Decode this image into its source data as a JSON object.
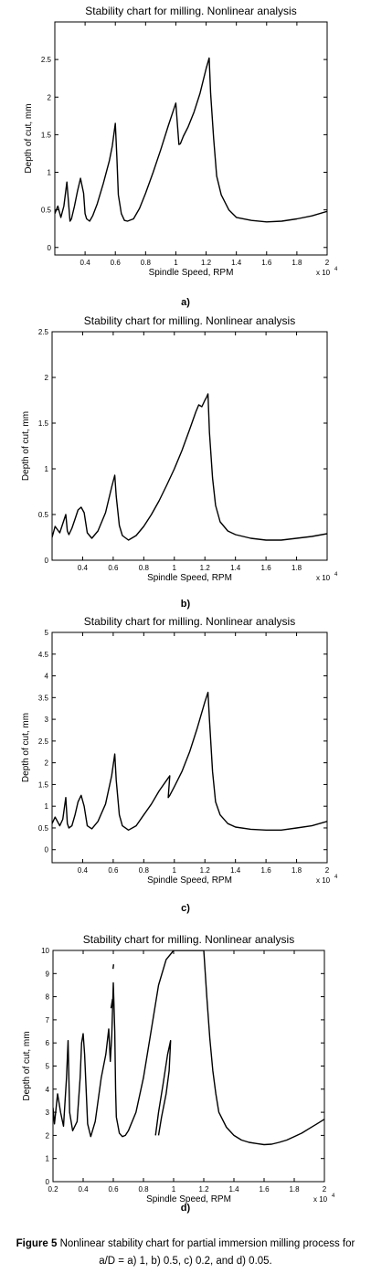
{
  "figure": {
    "caption_label": "Figure 5",
    "caption_text": "Nonlinear stability chart for partial immersion milling process for a/D = a) 1, b) 0.5, c) 0.2, and d) 0.05."
  },
  "chart_data": [
    {
      "type": "line",
      "panel_label": "a)",
      "title": "Stability chart for milling. Nonlinear analysis",
      "xlabel": "Spindle Speed, RPM",
      "ylabel": "Depth of cut, mm",
      "x_multiplier": "x 10",
      "x_multiplier_exp": "4",
      "xlim": [
        0.2,
        2.0
      ],
      "ylim": [
        -0.1,
        3.0
      ],
      "xticks": [
        "0.4",
        "0.6",
        "0.8",
        "1",
        "1.2",
        "1.4",
        "1.6",
        "1.8",
        "2"
      ],
      "yticks": [
        "0",
        "0.5",
        "1",
        "1.5",
        "2",
        "2.5"
      ],
      "ytick_values": [
        0,
        0.5,
        1,
        1.5,
        2,
        2.5
      ],
      "series": [
        {
          "x": [
            0.2,
            0.22,
            0.24,
            0.26,
            0.28,
            0.3,
            0.31,
            0.33,
            0.35,
            0.37,
            0.39,
            0.4,
            0.41,
            0.43,
            0.45,
            0.48,
            0.52,
            0.56,
            0.58,
            0.6,
            0.61,
            0.62,
            0.64,
            0.66,
            0.68,
            0.72,
            0.76,
            0.8,
            0.85,
            0.9,
            0.95,
            1.0,
            1.02,
            1.03,
            1.05,
            1.08,
            1.12,
            1.16,
            1.2,
            1.22,
            1.23,
            1.25,
            1.27,
            1.3,
            1.35,
            1.4,
            1.5,
            1.6,
            1.7,
            1.8,
            1.9,
            2.0
          ],
          "y": [
            0.45,
            0.55,
            0.4,
            0.55,
            0.87,
            0.35,
            0.38,
            0.55,
            0.75,
            0.92,
            0.72,
            0.45,
            0.38,
            0.35,
            0.42,
            0.58,
            0.85,
            1.15,
            1.35,
            1.65,
            1.2,
            0.7,
            0.45,
            0.36,
            0.35,
            0.38,
            0.52,
            0.72,
            1.0,
            1.3,
            1.62,
            1.92,
            1.37,
            1.38,
            1.48,
            1.6,
            1.8,
            2.05,
            2.38,
            2.52,
            2.05,
            1.45,
            0.95,
            0.7,
            0.5,
            0.4,
            0.36,
            0.34,
            0.35,
            0.38,
            0.42,
            0.48
          ]
        }
      ]
    },
    {
      "type": "line",
      "panel_label": "b)",
      "title": "Stability chart for milling. Nonlinear analysis",
      "xlabel": "Spindle Speed, RPM",
      "ylabel": "Depth of cut, mm",
      "x_multiplier": "x 10",
      "x_multiplier_exp": "4",
      "xlim": [
        0.2,
        2.0
      ],
      "ylim": [
        0,
        2.5
      ],
      "xticks": [
        "0.4",
        "0.6",
        "0.8",
        "1",
        "1.2",
        "1.4",
        "1.6",
        "1.8"
      ],
      "yticks": [
        "0",
        "0.5",
        "1",
        "1.5",
        "2",
        "2.5"
      ],
      "ytick_values": [
        0,
        0.5,
        1,
        1.5,
        2,
        2.5
      ],
      "series": [
        {
          "x": [
            0.2,
            0.22,
            0.25,
            0.27,
            0.29,
            0.3,
            0.31,
            0.33,
            0.35,
            0.37,
            0.39,
            0.41,
            0.43,
            0.46,
            0.5,
            0.55,
            0.59,
            0.61,
            0.62,
            0.64,
            0.66,
            0.7,
            0.75,
            0.8,
            0.85,
            0.9,
            0.95,
            1.0,
            1.05,
            1.1,
            1.14,
            1.16,
            1.18,
            1.2,
            1.21,
            1.22,
            1.23,
            1.25,
            1.27,
            1.3,
            1.35,
            1.4,
            1.5,
            1.6,
            1.7,
            1.8,
            1.9,
            2.0
          ],
          "y": [
            0.25,
            0.37,
            0.3,
            0.4,
            0.5,
            0.32,
            0.28,
            0.35,
            0.45,
            0.55,
            0.58,
            0.52,
            0.3,
            0.24,
            0.32,
            0.52,
            0.8,
            0.93,
            0.7,
            0.38,
            0.27,
            0.22,
            0.27,
            0.37,
            0.5,
            0.65,
            0.82,
            1.0,
            1.2,
            1.43,
            1.62,
            1.7,
            1.68,
            1.75,
            1.78,
            1.82,
            1.4,
            0.9,
            0.6,
            0.42,
            0.32,
            0.28,
            0.24,
            0.22,
            0.22,
            0.24,
            0.26,
            0.29
          ]
        }
      ]
    },
    {
      "type": "line",
      "panel_label": "c)",
      "title": "Stability chart for milling. Nonlinear analysis",
      "xlabel": "Spindle Speed, RPM",
      "ylabel": "Depth of cut, mm",
      "x_multiplier": "x 10",
      "x_multiplier_exp": "4",
      "xlim": [
        0.2,
        2.0
      ],
      "ylim": [
        -0.3,
        5.0
      ],
      "xticks": [
        "0.4",
        "0.6",
        "0.8",
        "1",
        "1.2",
        "1.4",
        "1.6",
        "1.8",
        "2"
      ],
      "yticks": [
        "0",
        "0.5",
        "1",
        "1.5",
        "2",
        "2.5",
        "3",
        "3.5",
        "4",
        "4.5",
        "5"
      ],
      "ytick_values": [
        0,
        0.5,
        1,
        1.5,
        2,
        2.5,
        3,
        3.5,
        4,
        4.5,
        5
      ],
      "series": [
        {
          "x": [
            0.2,
            0.22,
            0.25,
            0.27,
            0.29,
            0.3,
            0.31,
            0.33,
            0.35,
            0.37,
            0.39,
            0.41,
            0.43,
            0.46,
            0.5,
            0.55,
            0.59,
            0.61,
            0.62,
            0.64,
            0.66,
            0.7,
            0.75,
            0.8,
            0.85,
            0.9,
            0.95,
            0.97,
            0.96,
            0.97,
            1.0,
            1.05,
            1.1,
            1.15,
            1.2,
            1.22,
            1.23,
            1.25,
            1.27,
            1.3,
            1.35,
            1.4,
            1.5,
            1.6,
            1.7,
            1.8,
            1.9,
            2.0
          ],
          "y": [
            0.6,
            0.75,
            0.55,
            0.7,
            1.2,
            0.6,
            0.5,
            0.55,
            0.8,
            1.1,
            1.25,
            1.0,
            0.55,
            0.48,
            0.65,
            1.05,
            1.7,
            2.2,
            1.6,
            0.8,
            0.55,
            0.45,
            0.55,
            0.8,
            1.05,
            1.35,
            1.6,
            1.7,
            1.2,
            1.25,
            1.45,
            1.8,
            2.25,
            2.8,
            3.4,
            3.62,
            3.0,
            1.8,
            1.1,
            0.8,
            0.6,
            0.52,
            0.47,
            0.45,
            0.45,
            0.5,
            0.55,
            0.65
          ]
        }
      ]
    },
    {
      "type": "line",
      "panel_label": "d)",
      "title": "Stability chart for milling. Nonlinear analysis",
      "xlabel": "Spindle Speed, RPM",
      "ylabel": "Depth of cut, mm",
      "x_multiplier": "x 10",
      "x_multiplier_exp": "4",
      "xlim": [
        0.2,
        2.0
      ],
      "ylim": [
        0,
        10
      ],
      "xticks": [
        "0.2",
        "0.4",
        "0.6",
        "0.8",
        "1",
        "1.2",
        "1.4",
        "1.6",
        "1.8",
        "2"
      ],
      "yticks": [
        "0",
        "1",
        "2",
        "3",
        "4",
        "5",
        "6",
        "7",
        "8",
        "9",
        "10"
      ],
      "ytick_values": [
        0,
        1,
        2,
        3,
        4,
        5,
        6,
        7,
        8,
        9,
        10
      ],
      "series": [
        {
          "x": [
            0.2,
            0.21,
            0.23,
            0.25,
            0.27,
            0.29,
            0.3,
            0.31,
            0.33,
            0.36,
            0.38,
            0.39,
            0.4,
            0.41,
            0.43,
            0.45,
            0.48,
            0.52,
            0.55,
            0.57,
            0.58,
            0.59,
            0.6,
            0.61,
            0.615,
            0.62,
            0.64,
            0.66,
            0.68,
            0.7,
            0.75,
            0.8,
            0.85,
            0.9,
            0.95,
            1.0,
            1.2,
            1.22,
            1.24,
            1.26,
            1.28,
            1.3,
            1.35,
            1.4,
            1.45,
            1.5,
            1.55,
            1.6,
            1.65,
            1.7,
            1.75,
            1.8,
            1.85,
            1.9,
            1.95,
            2.0
          ],
          "y": [
            3.2,
            2.5,
            3.8,
            3.0,
            2.4,
            4.5,
            6.1,
            3.0,
            2.2,
            2.6,
            4.5,
            6.0,
            6.4,
            5.5,
            2.5,
            1.95,
            2.6,
            4.5,
            5.5,
            6.6,
            5.2,
            6.3,
            8.6,
            6.5,
            4.0,
            2.8,
            2.1,
            1.95,
            2.0,
            2.2,
            3.0,
            4.5,
            6.5,
            8.5,
            9.6,
            10,
            10,
            8.0,
            6.2,
            4.8,
            3.8,
            3.0,
            2.35,
            2.0,
            1.8,
            1.7,
            1.65,
            1.6,
            1.62,
            1.7,
            1.8,
            1.95,
            2.1,
            2.3,
            2.5,
            2.7
          ]
        },
        {
          "x": [
            0.88,
            0.9,
            0.93,
            0.96,
            0.98,
            0.97,
            0.95,
            0.92,
            0.9
          ],
          "y": [
            2.0,
            3.0,
            4.2,
            5.5,
            6.1,
            4.8,
            3.8,
            2.8,
            2.0
          ]
        },
        {
          "x": [
            0.585,
            0.595
          ],
          "y": [
            7.5,
            7.9
          ]
        },
        {
          "x": [
            0.598,
            0.602
          ],
          "y": [
            9.2,
            9.4
          ]
        }
      ]
    }
  ]
}
